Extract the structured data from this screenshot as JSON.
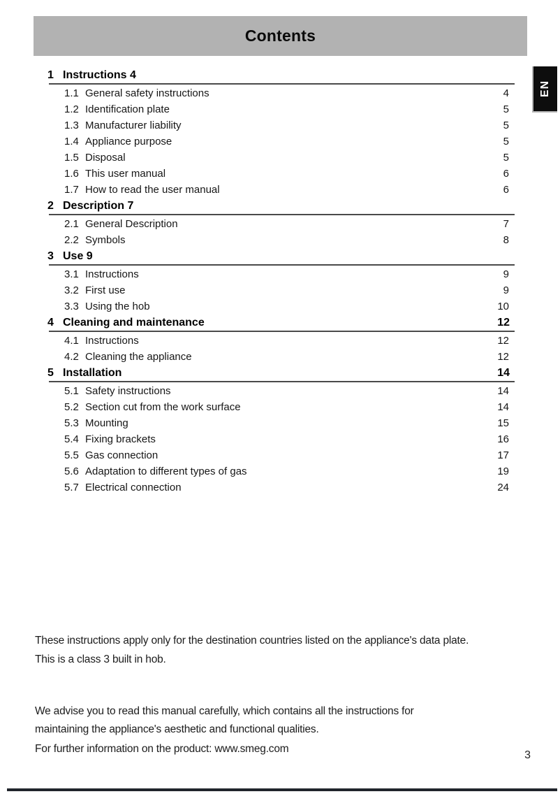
{
  "header": {
    "title": "Contents",
    "language_tab": "EN"
  },
  "toc": {
    "sections": [
      {
        "number": "1",
        "title": "Instructions",
        "page": "4",
        "page_style": "inline",
        "items": [
          {
            "number": "1.1",
            "title": "General safety instructions",
            "page": "4"
          },
          {
            "number": "1.2",
            "title": "Identification plate",
            "page": "5"
          },
          {
            "number": "1.3",
            "title": "Manufacturer liability",
            "page": "5"
          },
          {
            "number": "1.4",
            "title": "Appliance purpose",
            "page": "5"
          },
          {
            "number": "1.5",
            "title": "Disposal",
            "page": "5"
          },
          {
            "number": "1.6",
            "title": "This user manual",
            "page": "6"
          },
          {
            "number": "1.7",
            "title": "How to read the user manual",
            "page": "6"
          }
        ]
      },
      {
        "number": "2",
        "title": "Description",
        "page": "7",
        "page_style": "inline",
        "items": [
          {
            "number": "2.1",
            "title": "General Description",
            "page": "7"
          },
          {
            "number": "2.2",
            "title": "Symbols",
            "page": "8"
          }
        ]
      },
      {
        "number": "3",
        "title": "Use",
        "page": "9",
        "page_style": "inline",
        "items": [
          {
            "number": "3.1",
            "title": "Instructions",
            "page": "9"
          },
          {
            "number": "3.2",
            "title": "First use",
            "page": "9"
          },
          {
            "number": "3.3",
            "title": "Using the hob",
            "page": "10"
          }
        ]
      },
      {
        "number": "4",
        "title": "Cleaning and maintenance",
        "page": "12",
        "page_style": "right",
        "items": [
          {
            "number": "4.1",
            "title": "Instructions",
            "page": "12"
          },
          {
            "number": "4.2",
            "title": "Cleaning the appliance",
            "page": "12"
          }
        ]
      },
      {
        "number": "5",
        "title": "Installation",
        "page": "14",
        "page_style": "right",
        "items": [
          {
            "number": "5.1",
            "title": "Safety instructions",
            "page": "14"
          },
          {
            "number": "5.2",
            "title": "Section cut from the work surface",
            "page": "14"
          },
          {
            "number": "5.3",
            "title": "Mounting",
            "page": "15"
          },
          {
            "number": "5.4",
            "title": "Fixing brackets",
            "page": "16"
          },
          {
            "number": "5.5",
            "title": "Gas connection",
            "page": "17"
          },
          {
            "number": "5.6",
            "title": "Adaptation to different types of gas",
            "page": "19"
          },
          {
            "number": "5.7",
            "title": "Electrical connection",
            "page": "24"
          }
        ]
      }
    ]
  },
  "footer": {
    "paragraphs": [
      {
        "lines": [
          "These instructions apply only for the destination countries listed on the appliance's data plate.",
          "This is a class 3 built in hob."
        ]
      },
      {
        "lines": [
          "We advise you to read this manual carefully, which contains all the instructions for",
          "maintaining the appliance's aesthetic and functional qualities."
        ]
      },
      {
        "lines": [
          "For further information on the product: www.smeg.com"
        ]
      }
    ],
    "page_number": "3"
  },
  "colors": {
    "header_bar": "#b2b2b2",
    "tab_background": "#0d0d0d",
    "rule": "#4a4a4a",
    "bottom_bar": "#20242b"
  }
}
